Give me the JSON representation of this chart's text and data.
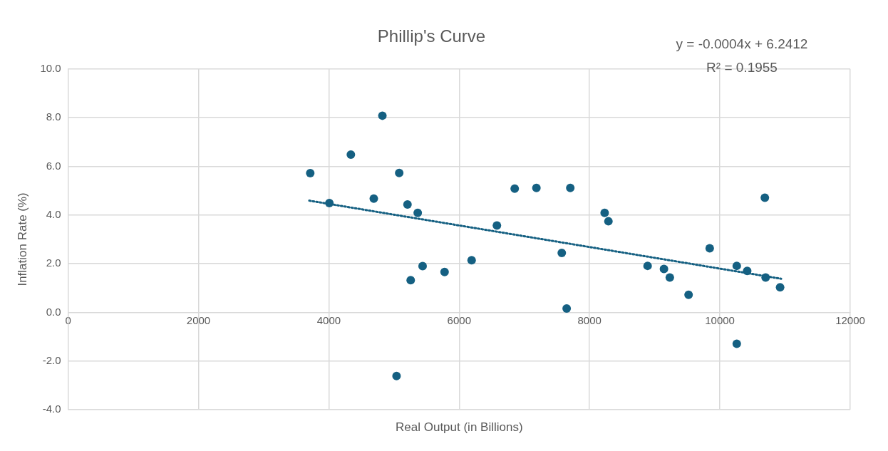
{
  "chart_data": {
    "type": "scatter",
    "title": "Phillip's Curve",
    "xlabel": "Real Output (in Billions)",
    "ylabel": "Inflation Rate (%)",
    "annotations": [
      "y = -0.0004x + 6.2412",
      "R² = 0.1955"
    ],
    "series": [
      {
        "color": "#156082",
        "marker": "circle",
        "x": [
          3715,
          4008,
          4338,
          4690,
          4822,
          5039,
          5080,
          5207,
          5256,
          5364,
          5439,
          5776,
          6191,
          6579,
          6852,
          7185,
          7574,
          7649,
          7705,
          8232,
          8290,
          8891,
          9142,
          9232,
          9520,
          9844,
          10259,
          10259,
          10419,
          10690,
          10702,
          10924
        ],
        "values": [
          5.72,
          4.49,
          6.48,
          4.67,
          8.08,
          -2.62,
          5.73,
          4.43,
          1.32,
          4.09,
          1.9,
          1.66,
          2.14,
          3.57,
          5.08,
          5.11,
          2.44,
          0.16,
          5.11,
          4.09,
          3.74,
          1.91,
          1.78,
          1.43,
          0.72,
          2.63,
          1.91,
          -1.29,
          1.7,
          4.71,
          1.43,
          1.03
        ]
      },
      {
        "type": "line",
        "color": "#156082",
        "marker": "none",
        "line_style": "dotted",
        "x": [
          3700,
          10940
        ],
        "values": [
          4.59,
          1.38
        ]
      }
    ],
    "xlim": [
      0,
      12000
    ],
    "xticks": [
      0,
      2000,
      4000,
      6000,
      8000,
      10000,
      12000
    ],
    "ylim": [
      -4,
      10
    ],
    "yticks": [
      {
        "value": -4,
        "label": "-4.0"
      },
      {
        "value": -2,
        "label": "-2.0"
      },
      {
        "value": 0,
        "label": "0.0"
      },
      {
        "value": 2,
        "label": "2.0"
      },
      {
        "value": 4,
        "label": "4.0"
      },
      {
        "value": 6,
        "label": "6.0"
      },
      {
        "value": 8,
        "label": "8.0"
      },
      {
        "value": 10,
        "label": "10.0"
      }
    ],
    "grid": true,
    "legend": false
  }
}
